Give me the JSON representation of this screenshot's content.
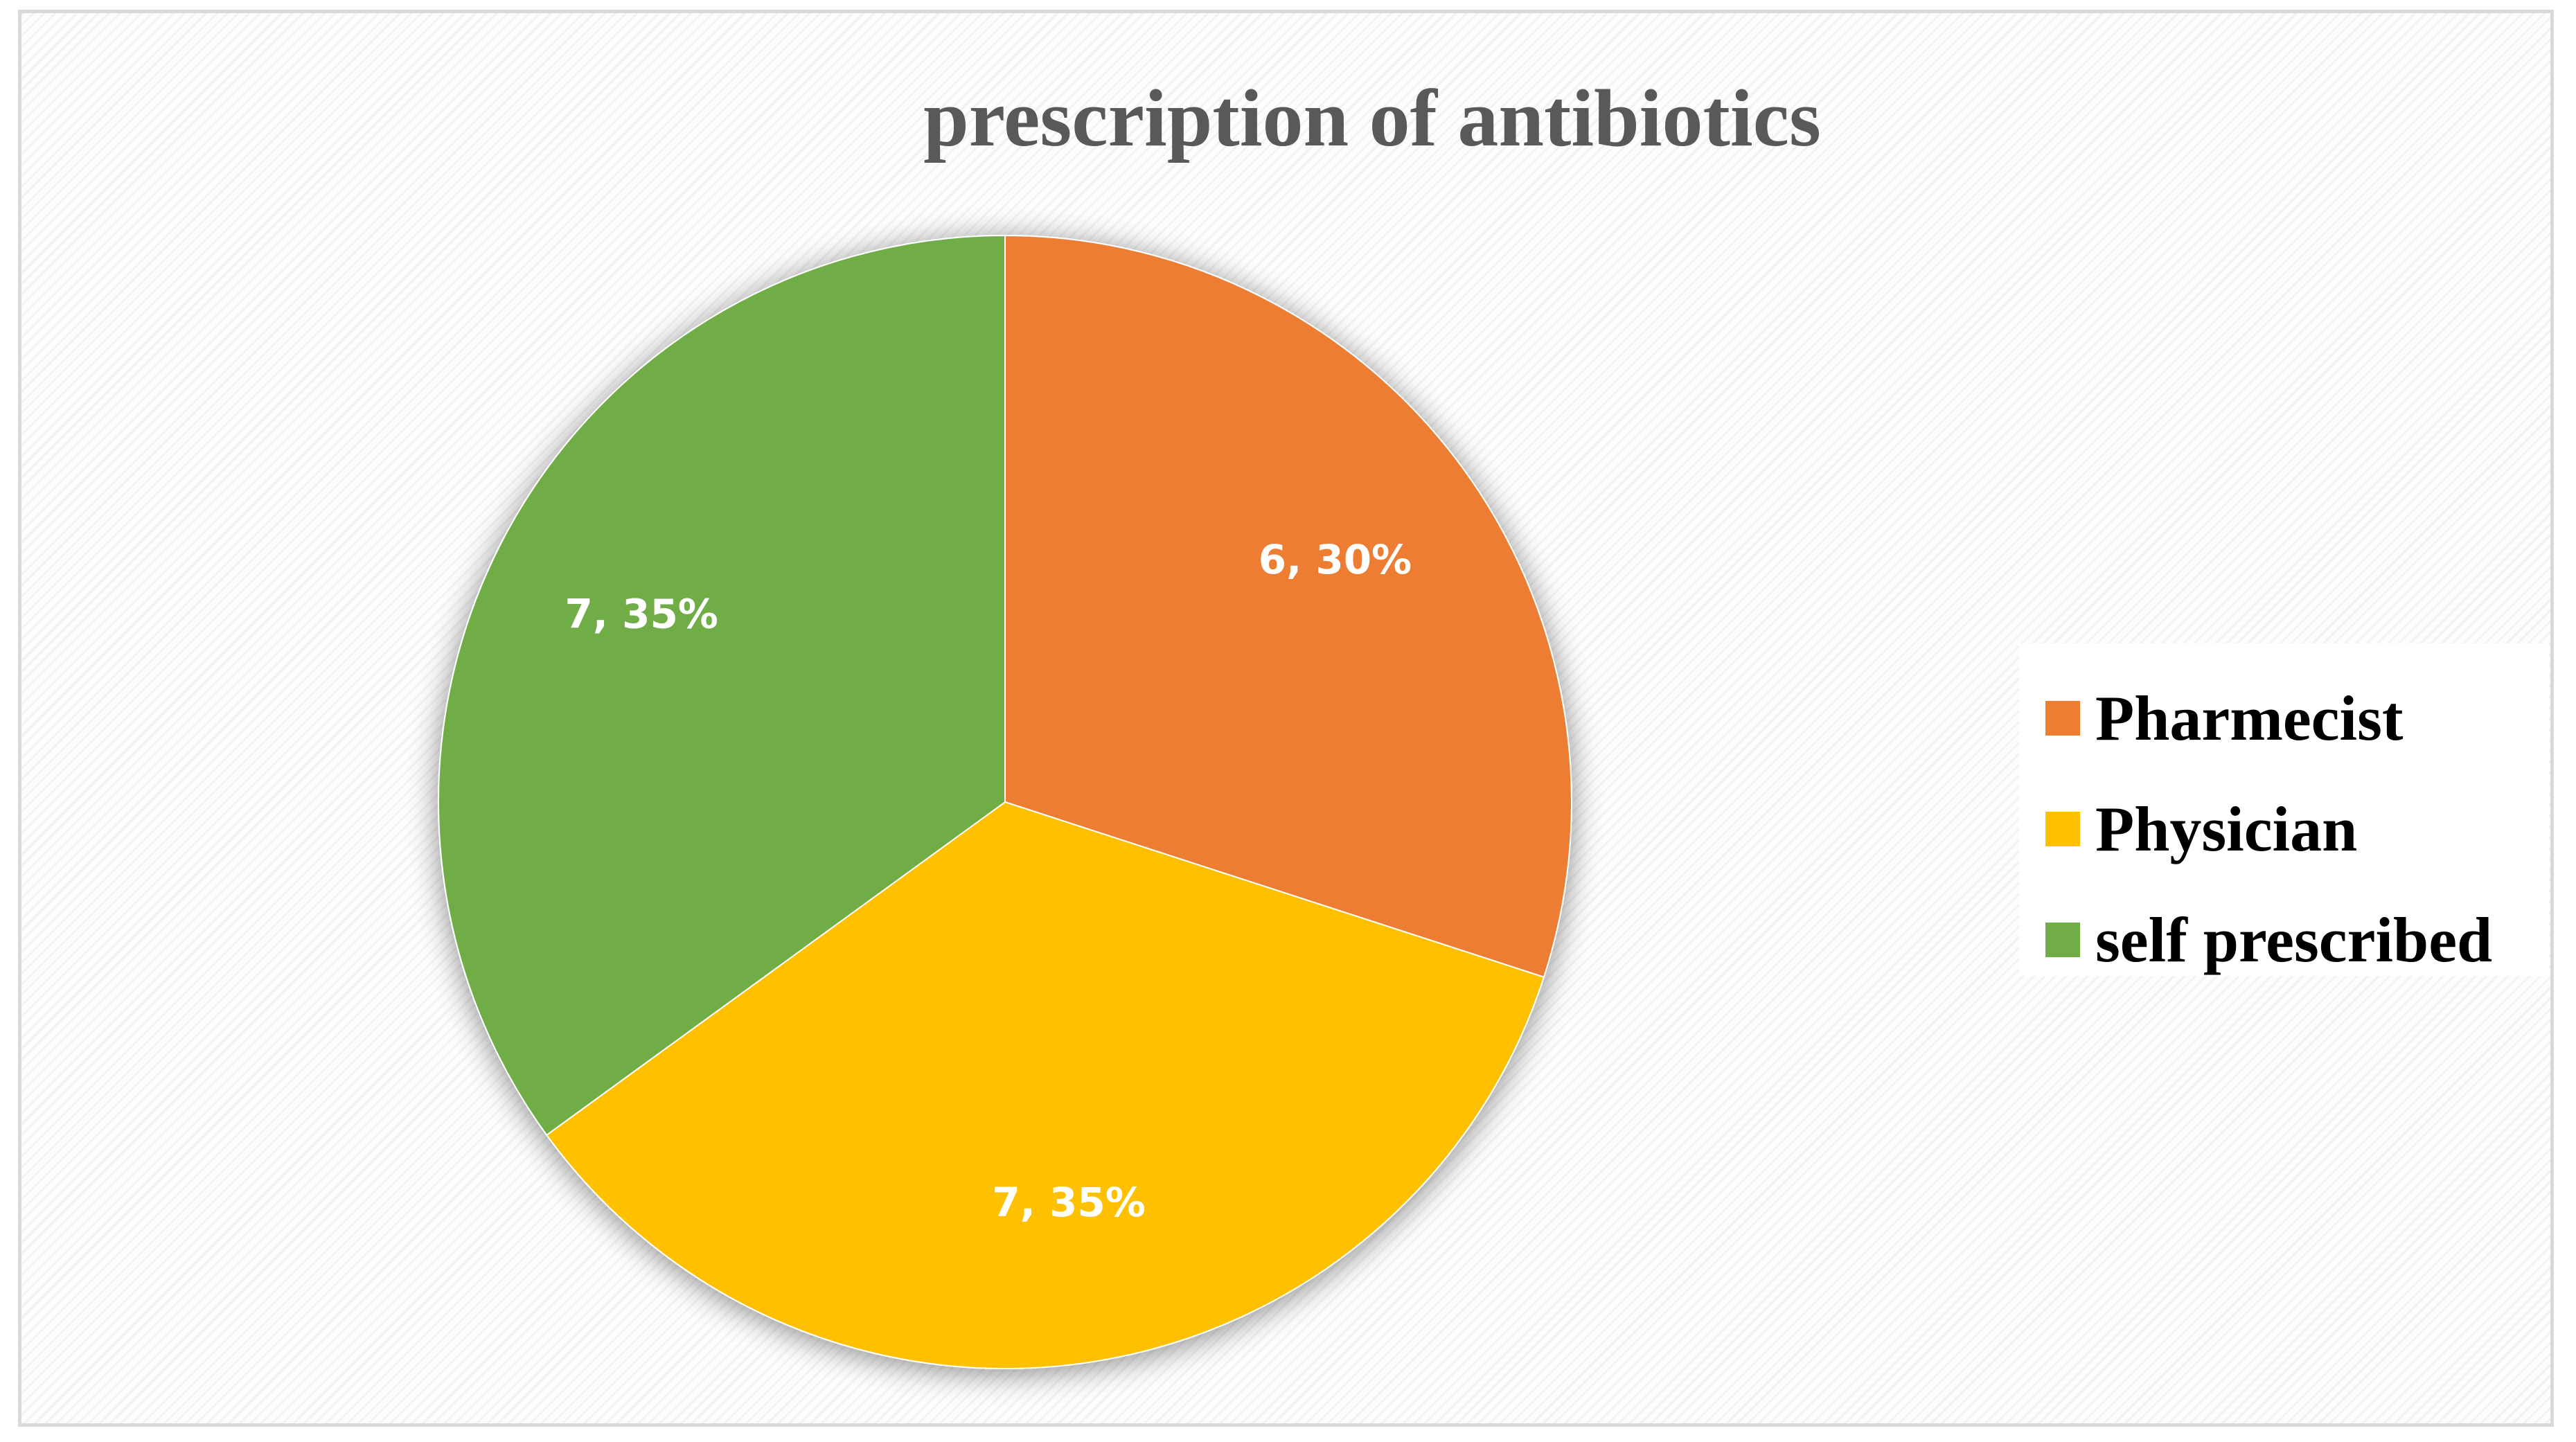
{
  "chart_data": {
    "type": "pie",
    "title": "prescription of antibiotics",
    "slices": [
      {
        "name": "Pharmecist",
        "value": 6,
        "percent": 30,
        "label": "6, 30%",
        "color": "#ED7D31"
      },
      {
        "name": "Physician",
        "value": 7,
        "percent": 35,
        "label": "7, 35%",
        "color": "#FFC000"
      },
      {
        "name": "self prescribed",
        "value": 7,
        "percent": 35,
        "label": "7, 35%",
        "color": "#70AD47"
      }
    ],
    "legend_position": "right"
  }
}
